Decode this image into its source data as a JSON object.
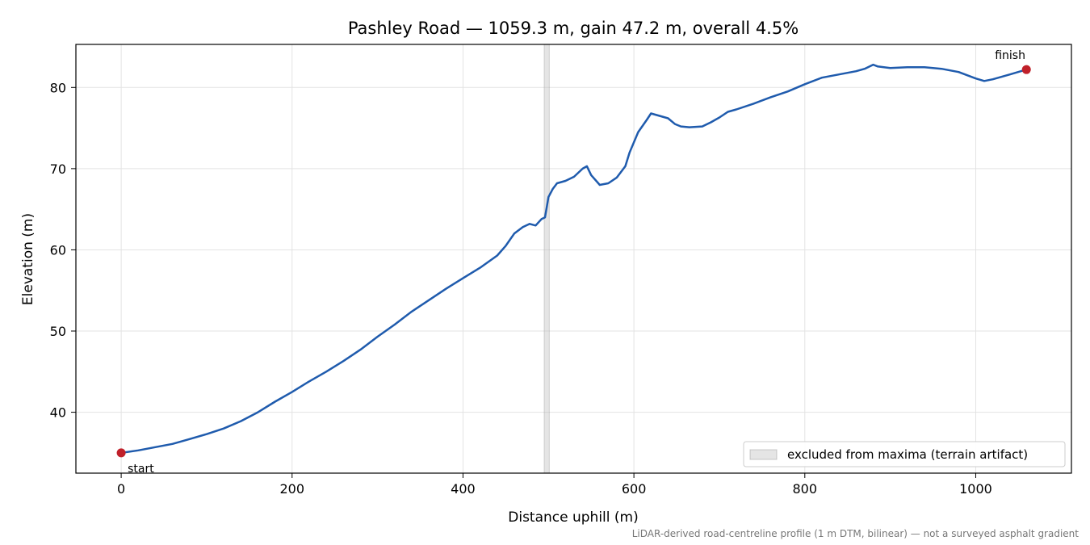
{
  "chart_data": {
    "type": "line",
    "title": "Pashley Road — 1059.3 m, gain 47.2 m, overall 4.5%",
    "xlabel": "Distance uphill (m)",
    "ylabel": "Elevation (m)",
    "xlim": [
      -53,
      1112
    ],
    "ylim": [
      32.5,
      85.3
    ],
    "xticks": [
      "0",
      "200",
      "400",
      "600",
      "800",
      "1000"
    ],
    "yticks": [
      "40",
      "50",
      "60",
      "70",
      "80"
    ],
    "grid": true,
    "legend_position": "lower-right",
    "legend": [
      {
        "label": "excluded from maxima (terrain artifact)",
        "kind": "shaded-band"
      }
    ],
    "excluded_band": {
      "x": [
        495,
        501
      ]
    },
    "series": [
      {
        "color": "#1f5bad",
        "points": [
          [
            0,
            35.0
          ],
          [
            20,
            35.3
          ],
          [
            40,
            35.7
          ],
          [
            60,
            36.1
          ],
          [
            80,
            36.7
          ],
          [
            100,
            37.3
          ],
          [
            120,
            38.0
          ],
          [
            140,
            38.9
          ],
          [
            160,
            40.0
          ],
          [
            180,
            41.3
          ],
          [
            200,
            42.5
          ],
          [
            220,
            43.8
          ],
          [
            240,
            45.0
          ],
          [
            260,
            46.3
          ],
          [
            280,
            47.7
          ],
          [
            300,
            49.3
          ],
          [
            320,
            50.8
          ],
          [
            340,
            52.4
          ],
          [
            360,
            53.8
          ],
          [
            380,
            55.2
          ],
          [
            400,
            56.5
          ],
          [
            420,
            57.8
          ],
          [
            440,
            59.3
          ],
          [
            450,
            60.5
          ],
          [
            460,
            62.0
          ],
          [
            470,
            62.8
          ],
          [
            478,
            63.2
          ],
          [
            485,
            63.0
          ],
          [
            492,
            63.8
          ],
          [
            496,
            64.0
          ],
          [
            500,
            66.5
          ],
          [
            505,
            67.5
          ],
          [
            510,
            68.2
          ],
          [
            520,
            68.5
          ],
          [
            530,
            69.0
          ],
          [
            540,
            70.0
          ],
          [
            545,
            70.3
          ],
          [
            550,
            69.2
          ],
          [
            560,
            68.0
          ],
          [
            570,
            68.2
          ],
          [
            580,
            68.9
          ],
          [
            590,
            70.3
          ],
          [
            595,
            72.0
          ],
          [
            605,
            74.5
          ],
          [
            615,
            76.0
          ],
          [
            620,
            76.8
          ],
          [
            630,
            76.5
          ],
          [
            640,
            76.2
          ],
          [
            648,
            75.5
          ],
          [
            655,
            75.2
          ],
          [
            665,
            75.1
          ],
          [
            680,
            75.2
          ],
          [
            690,
            75.7
          ],
          [
            700,
            76.3
          ],
          [
            710,
            77.0
          ],
          [
            720,
            77.3
          ],
          [
            740,
            78.0
          ],
          [
            760,
            78.8
          ],
          [
            780,
            79.5
          ],
          [
            800,
            80.4
          ],
          [
            820,
            81.2
          ],
          [
            840,
            81.6
          ],
          [
            860,
            82.0
          ],
          [
            870,
            82.3
          ],
          [
            880,
            82.8
          ],
          [
            885,
            82.6
          ],
          [
            900,
            82.4
          ],
          [
            920,
            82.5
          ],
          [
            940,
            82.5
          ],
          [
            960,
            82.3
          ],
          [
            980,
            81.9
          ],
          [
            1000,
            81.1
          ],
          [
            1010,
            80.8
          ],
          [
            1020,
            81.0
          ],
          [
            1040,
            81.6
          ],
          [
            1059.3,
            82.2
          ]
        ]
      }
    ],
    "markers": [
      {
        "label": "start",
        "x": 0,
        "y": 35.0,
        "color": "#c0202a"
      },
      {
        "label": "finish",
        "x": 1059.3,
        "y": 82.2,
        "color": "#c0202a"
      }
    ],
    "footnote": "LiDAR-derived road-centreline profile (1 m DTM, bilinear) — not a surveyed asphalt gradient"
  }
}
